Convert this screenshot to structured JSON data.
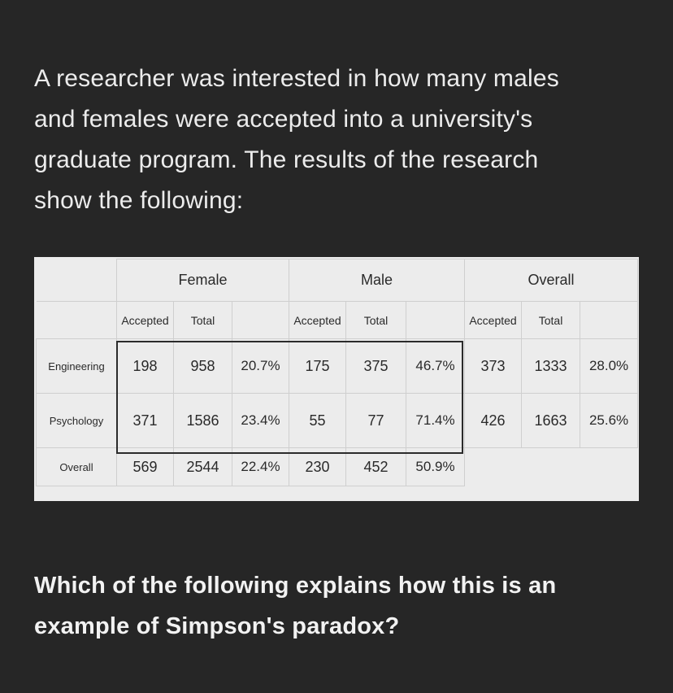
{
  "intro": {
    "line1": "A researcher was interested in how many males",
    "line2": "and females were accepted into a university's",
    "line3": "graduate program. The results of the research",
    "line4": "show the following:"
  },
  "table": {
    "groups": [
      "Female",
      "Male",
      "Overall"
    ],
    "sub_headers": [
      "Accepted",
      "Total",
      ""
    ],
    "rows": [
      {
        "label": "Engineering",
        "female": [
          "198",
          "958",
          "20.7%"
        ],
        "male": [
          "175",
          "375",
          "46.7%"
        ],
        "overall": [
          "373",
          "1333",
          "28.0%"
        ]
      },
      {
        "label": "Psychology",
        "female": [
          "371",
          "1586",
          "23.4%"
        ],
        "male": [
          "55",
          "77",
          "71.4%"
        ],
        "overall": [
          "426",
          "1663",
          "25.6%"
        ]
      },
      {
        "label": "Overall",
        "female": [
          "569",
          "2544",
          "22.4%"
        ],
        "male": [
          "230",
          "452",
          "50.9%"
        ],
        "overall": [
          "",
          "",
          ""
        ]
      }
    ]
  },
  "question": {
    "line1": "Which of the following explains how this is an",
    "line2": "example of Simpson's paradox?"
  }
}
